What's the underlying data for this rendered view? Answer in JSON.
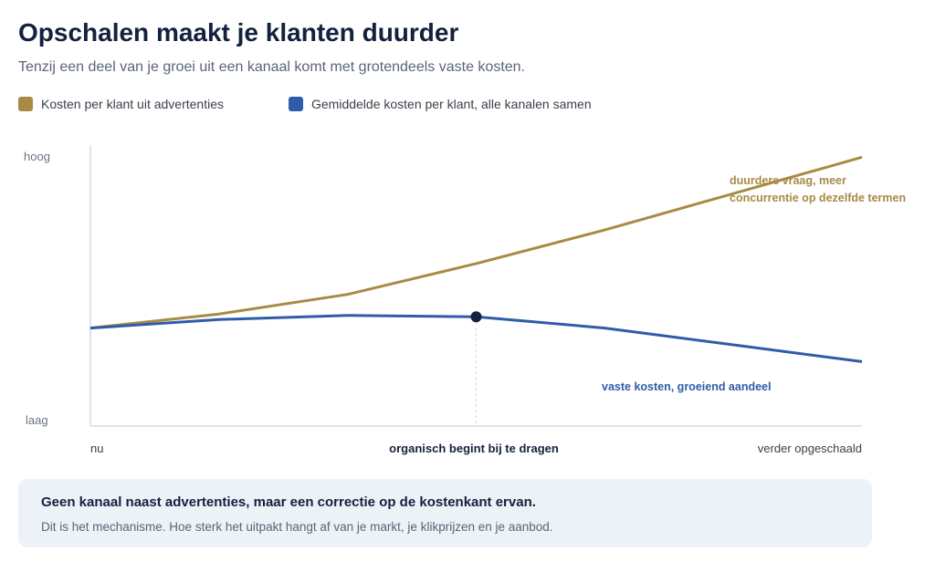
{
  "header": {
    "title": "Opschalen maakt je klanten duurder",
    "subtitle": "Tenzij een deel van je groei uit een kanaal komt met grotendeels vaste kosten."
  },
  "chart_data": {
    "type": "line",
    "x": [
      0,
      1,
      2,
      3,
      4,
      5,
      6
    ],
    "xlim": [
      0,
      6
    ],
    "ylim": [
      0,
      10
    ],
    "ytick_labels": {
      "top": "hoog",
      "bottom": "laag"
    },
    "xtick_labels": {
      "start": "nu",
      "middle": "organisch begint bij te dragen",
      "end": "verder opgeschaald"
    },
    "marker_x": 3,
    "series": [
      {
        "name": "Kosten per klant uit advertenties",
        "color": "#a88a45",
        "values": [
          3.5,
          4.0,
          4.7,
          5.8,
          7.0,
          8.3,
          9.6
        ],
        "annotation": [
          "duurdere vraag, meer",
          "concurrentie op dezelfde termen"
        ]
      },
      {
        "name": "Gemiddelde kosten per klant, alle kanalen samen",
        "color": "#2f5ca8",
        "values": [
          3.5,
          3.8,
          3.95,
          3.9,
          3.5,
          2.9,
          2.3
        ],
        "annotation": [
          "vaste kosten, groeiend aandeel"
        ]
      }
    ],
    "grid": false,
    "legend_position": "top-left"
  },
  "callout": {
    "title": "Geen kanaal naast advertenties, maar een correctie op de kostenkant ervan.",
    "body": "Dit is het mechanisme. Hoe sterk het uitpakt hangt af van je markt, je klikprijzen en je aanbod."
  }
}
